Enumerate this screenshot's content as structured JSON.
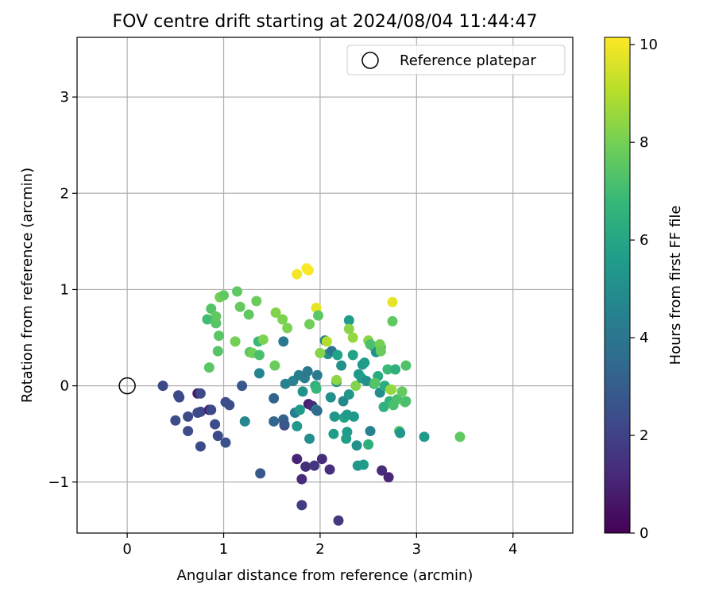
{
  "chart_data": {
    "type": "scatter",
    "title": "FOV centre drift starting at 2024/08/04 11:44:47",
    "xlabel": "Angular distance from reference (arcmin)",
    "ylabel": "Rotation from reference (arcmin)",
    "xlim": [
      -0.52,
      4.62
    ],
    "ylim": [
      -1.53,
      3.62
    ],
    "xticks": [
      0,
      1,
      2,
      3,
      4
    ],
    "yticks": [
      -1,
      0,
      1,
      2,
      3
    ],
    "xtick_labels": [
      "0",
      "1",
      "2",
      "3",
      "4"
    ],
    "ytick_labels": [
      "−1",
      "0",
      "1",
      "2",
      "3"
    ],
    "grid": true,
    "legend_position": "top-right",
    "reference": {
      "name": "Reference platepar",
      "x": 0,
      "y": 0,
      "marker": "open-circle"
    },
    "colorbar": {
      "label": "Hours from first FF file",
      "colormap": "viridis",
      "min": 0,
      "max": 10.15,
      "ticks": [
        0,
        2,
        4,
        6,
        8,
        10
      ],
      "tick_labels": [
        "0",
        "2",
        "4",
        "6",
        "8",
        "10"
      ]
    },
    "colormap_stops": [
      "#440154",
      "#482878",
      "#3e4989",
      "#31688e",
      "#26828e",
      "#1f9e89",
      "#35b779",
      "#6ece58",
      "#b5de2b",
      "#fde725"
    ],
    "points": [
      {
        "x": 0.37,
        "y": 0.0,
        "c": 2.3
      },
      {
        "x": 0.53,
        "y": -0.1,
        "c": 2.2
      },
      {
        "x": 0.54,
        "y": -0.12,
        "c": 2.3
      },
      {
        "x": 0.5,
        "y": -0.36,
        "c": 2.4
      },
      {
        "x": 0.63,
        "y": -0.32,
        "c": 2.3
      },
      {
        "x": 0.63,
        "y": -0.47,
        "c": 2.4
      },
      {
        "x": 0.73,
        "y": -0.08,
        "c": 0.6
      },
      {
        "x": 0.76,
        "y": -0.08,
        "c": 2.3
      },
      {
        "x": 0.73,
        "y": -0.28,
        "c": 2.4
      },
      {
        "x": 0.76,
        "y": -0.27,
        "c": 2.3
      },
      {
        "x": 0.76,
        "y": -0.63,
        "c": 2.3
      },
      {
        "x": 0.85,
        "y": -0.25,
        "c": 0.8
      },
      {
        "x": 0.87,
        "y": -0.25,
        "c": 2.3
      },
      {
        "x": 0.91,
        "y": -0.4,
        "c": 2.4
      },
      {
        "x": 0.94,
        "y": -0.52,
        "c": 2.3
      },
      {
        "x": 1.02,
        "y": -0.59,
        "c": 2.6
      },
      {
        "x": 1.02,
        "y": -0.17,
        "c": 2.5
      },
      {
        "x": 1.06,
        "y": -0.2,
        "c": 2.4
      },
      {
        "x": 1.19,
        "y": 0.0,
        "c": 2.8
      },
      {
        "x": 1.22,
        "y": -0.37,
        "c": 4.7
      },
      {
        "x": 1.37,
        "y": 0.13,
        "c": 4.6
      },
      {
        "x": 1.38,
        "y": -0.91,
        "c": 2.8
      },
      {
        "x": 1.52,
        "y": -0.13,
        "c": 3.2
      },
      {
        "x": 1.52,
        "y": -0.37,
        "c": 3.3
      },
      {
        "x": 1.62,
        "y": -0.35,
        "c": 3.2
      },
      {
        "x": 1.63,
        "y": -0.41,
        "c": 1.2
      },
      {
        "x": 1.63,
        "y": -0.4,
        "c": 2.8
      },
      {
        "x": 1.62,
        "y": 0.46,
        "c": 4.1
      },
      {
        "x": 1.64,
        "y": 0.02,
        "c": 4.5
      },
      {
        "x": 1.72,
        "y": 0.05,
        "c": 4.5
      },
      {
        "x": 1.74,
        "y": -0.28,
        "c": 4.4
      },
      {
        "x": 1.76,
        "y": -0.76,
        "c": 1.0
      },
      {
        "x": 1.78,
        "y": 0.11,
        "c": 4.3
      },
      {
        "x": 1.76,
        "y": -0.42,
        "c": 5.4
      },
      {
        "x": 1.79,
        "y": -0.25,
        "c": 5.5
      },
      {
        "x": 1.81,
        "y": -0.97,
        "c": 1.2
      },
      {
        "x": 1.81,
        "y": -1.24,
        "c": 1.8
      },
      {
        "x": 1.82,
        "y": -0.06,
        "c": 5.2
      },
      {
        "x": 1.84,
        "y": 0.08,
        "c": 4.3
      },
      {
        "x": 1.85,
        "y": -0.84,
        "c": 1.4
      },
      {
        "x": 1.87,
        "y": 0.15,
        "c": 4.1
      },
      {
        "x": 1.88,
        "y": -0.19,
        "c": 0.9
      },
      {
        "x": 1.89,
        "y": -0.55,
        "c": 5.0
      },
      {
        "x": 1.92,
        "y": -0.21,
        "c": 1.3
      },
      {
        "x": 1.94,
        "y": -0.83,
        "c": 1.6
      },
      {
        "x": 1.95,
        "y": 0.0,
        "c": 6.4
      },
      {
        "x": 1.96,
        "y": -0.03,
        "c": 6.7
      },
      {
        "x": 1.96,
        "y": -0.25,
        "c": 5.1
      },
      {
        "x": 1.97,
        "y": -0.26,
        "c": 3.5
      },
      {
        "x": 1.97,
        "y": 0.11,
        "c": 4.2
      },
      {
        "x": 2.02,
        "y": -0.76,
        "c": 1.3
      },
      {
        "x": 2.05,
        "y": 0.47,
        "c": 4.5
      },
      {
        "x": 2.07,
        "y": 0.46,
        "c": 9.0
      },
      {
        "x": 2.08,
        "y": 0.33,
        "c": 5.1
      },
      {
        "x": 2.1,
        "y": -0.87,
        "c": 1.4
      },
      {
        "x": 2.11,
        "y": -0.12,
        "c": 5.0
      },
      {
        "x": 2.12,
        "y": 0.36,
        "c": 4.0
      },
      {
        "x": 2.14,
        "y": -0.5,
        "c": 5.6
      },
      {
        "x": 2.15,
        "y": -0.32,
        "c": 5.3
      },
      {
        "x": 2.17,
        "y": 0.04,
        "c": 5.1
      },
      {
        "x": 2.18,
        "y": 0.32,
        "c": 5.8
      },
      {
        "x": 2.19,
        "y": -1.4,
        "c": 1.7
      },
      {
        "x": 2.22,
        "y": 0.21,
        "c": 5.1
      },
      {
        "x": 2.24,
        "y": -0.16,
        "c": 4.8
      },
      {
        "x": 2.25,
        "y": -0.33,
        "c": 5.9
      },
      {
        "x": 2.27,
        "y": -0.55,
        "c": 5.7
      },
      {
        "x": 2.28,
        "y": -0.3,
        "c": 5.5
      },
      {
        "x": 2.28,
        "y": -0.48,
        "c": 5.6
      },
      {
        "x": 2.3,
        "y": 0.68,
        "c": 5.6
      },
      {
        "x": 2.3,
        "y": -0.09,
        "c": 5.3
      },
      {
        "x": 2.34,
        "y": 0.32,
        "c": 5.8
      },
      {
        "x": 2.35,
        "y": -0.32,
        "c": 5.4
      },
      {
        "x": 2.37,
        "y": 0.0,
        "c": 8.2
      },
      {
        "x": 2.38,
        "y": -0.62,
        "c": 5.1
      },
      {
        "x": 2.39,
        "y": -0.83,
        "c": 5.3
      },
      {
        "x": 2.4,
        "y": 0.12,
        "c": 5.4
      },
      {
        "x": 2.43,
        "y": 0.08,
        "c": 5.6
      },
      {
        "x": 2.44,
        "y": 0.22,
        "c": 5.4
      },
      {
        "x": 2.45,
        "y": -0.82,
        "c": 5.5
      },
      {
        "x": 2.46,
        "y": 0.24,
        "c": 5.5
      },
      {
        "x": 2.48,
        "y": 0.05,
        "c": 5.1
      },
      {
        "x": 2.5,
        "y": -0.61,
        "c": 6.4
      },
      {
        "x": 2.52,
        "y": -0.47,
        "c": 4.5
      },
      {
        "x": 2.55,
        "y": 0.41,
        "c": 7.0
      },
      {
        "x": 2.56,
        "y": 0.02,
        "c": 6.5
      },
      {
        "x": 2.58,
        "y": 0.35,
        "c": 5.2
      },
      {
        "x": 2.6,
        "y": 0.1,
        "c": 6.2
      },
      {
        "x": 2.62,
        "y": -0.07,
        "c": 5.0
      },
      {
        "x": 2.63,
        "y": 0.4,
        "c": 7.1
      },
      {
        "x": 2.64,
        "y": -0.88,
        "c": 1.3
      },
      {
        "x": 2.66,
        "y": -0.22,
        "c": 6.5
      },
      {
        "x": 2.67,
        "y": 0.0,
        "c": 6.3
      },
      {
        "x": 2.7,
        "y": 0.17,
        "c": 6.9
      },
      {
        "x": 2.71,
        "y": -0.95,
        "c": 1.1
      },
      {
        "x": 2.72,
        "y": -0.16,
        "c": 6.6
      },
      {
        "x": 2.73,
        "y": -0.04,
        "c": 8.7
      },
      {
        "x": 2.75,
        "y": 0.87,
        "c": 9.8
      },
      {
        "x": 2.75,
        "y": 0.67,
        "c": 7.6
      },
      {
        "x": 2.76,
        "y": -0.2,
        "c": 7.2
      },
      {
        "x": 2.78,
        "y": 0.17,
        "c": 6.4
      },
      {
        "x": 2.8,
        "y": -0.14,
        "c": 7.2
      },
      {
        "x": 2.82,
        "y": -0.47,
        "c": 7.4
      },
      {
        "x": 2.83,
        "y": -0.49,
        "c": 5.3
      },
      {
        "x": 2.85,
        "y": -0.06,
        "c": 7.7
      },
      {
        "x": 2.88,
        "y": -0.17,
        "c": 7.4
      },
      {
        "x": 2.89,
        "y": 0.21,
        "c": 7.3
      },
      {
        "x": 2.89,
        "y": -0.16,
        "c": 7.2
      },
      {
        "x": 3.08,
        "y": -0.53,
        "c": 5.5
      },
      {
        "x": 3.45,
        "y": -0.53,
        "c": 7.6
      },
      {
        "x": 0.85,
        "y": 0.19,
        "c": 7.5
      },
      {
        "x": 0.83,
        "y": 0.69,
        "c": 7.0
      },
      {
        "x": 0.87,
        "y": 0.8,
        "c": 7.4
      },
      {
        "x": 0.92,
        "y": 0.65,
        "c": 7.4
      },
      {
        "x": 0.92,
        "y": 0.72,
        "c": 7.6
      },
      {
        "x": 0.94,
        "y": 0.36,
        "c": 7.4
      },
      {
        "x": 0.95,
        "y": 0.52,
        "c": 7.5
      },
      {
        "x": 0.96,
        "y": 0.92,
        "c": 8.0
      },
      {
        "x": 1.0,
        "y": 0.94,
        "c": 7.6
      },
      {
        "x": 1.12,
        "y": 0.46,
        "c": 8.0
      },
      {
        "x": 1.14,
        "y": 0.98,
        "c": 7.6
      },
      {
        "x": 1.17,
        "y": 0.82,
        "c": 7.7
      },
      {
        "x": 1.26,
        "y": 0.74,
        "c": 7.6
      },
      {
        "x": 1.27,
        "y": 0.35,
        "c": 7.5
      },
      {
        "x": 1.3,
        "y": 0.34,
        "c": 7.9
      },
      {
        "x": 1.34,
        "y": 0.88,
        "c": 7.8
      },
      {
        "x": 1.36,
        "y": 0.46,
        "c": 6.8
      },
      {
        "x": 1.37,
        "y": 0.32,
        "c": 7.2
      },
      {
        "x": 1.41,
        "y": 0.48,
        "c": 8.1
      },
      {
        "x": 1.53,
        "y": 0.21,
        "c": 7.8
      },
      {
        "x": 1.54,
        "y": 0.76,
        "c": 8.2
      },
      {
        "x": 1.61,
        "y": 0.69,
        "c": 8.1
      },
      {
        "x": 1.66,
        "y": 0.6,
        "c": 8.1
      },
      {
        "x": 1.76,
        "y": 1.16,
        "c": 10.0
      },
      {
        "x": 1.86,
        "y": 1.22,
        "c": 10.1
      },
      {
        "x": 1.88,
        "y": 1.2,
        "c": 10.1
      },
      {
        "x": 1.89,
        "y": 0.64,
        "c": 7.9
      },
      {
        "x": 1.96,
        "y": 0.81,
        "c": 9.8
      },
      {
        "x": 1.98,
        "y": 0.73,
        "c": 7.5
      },
      {
        "x": 2.0,
        "y": 0.34,
        "c": 8.3
      },
      {
        "x": 2.17,
        "y": 0.06,
        "c": 8.4
      },
      {
        "x": 2.3,
        "y": 0.59,
        "c": 8.3
      },
      {
        "x": 2.34,
        "y": 0.5,
        "c": 8.5
      },
      {
        "x": 2.5,
        "y": 0.47,
        "c": 8.3
      },
      {
        "x": 2.52,
        "y": 0.43,
        "c": 7.2
      },
      {
        "x": 2.62,
        "y": 0.43,
        "c": 8.0
      },
      {
        "x": 2.63,
        "y": 0.36,
        "c": 7.8
      },
      {
        "x": 2.74,
        "y": -0.04,
        "c": 8.5
      },
      {
        "x": 2.57,
        "y": 0.03,
        "c": 7.4
      }
    ]
  }
}
